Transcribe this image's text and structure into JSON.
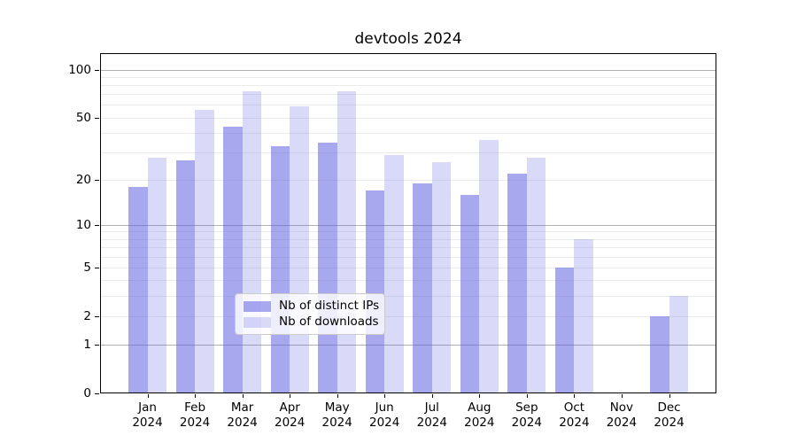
{
  "chart_data": {
    "type": "bar",
    "title": "devtools 2024",
    "y_scale": "log10(value+1)",
    "ylim": [
      0,
      126
    ],
    "grid": "on",
    "legend_position": "lower center, inside plot",
    "categories": [
      "Jan",
      "Feb",
      "Mar",
      "Apr",
      "May",
      "Jun",
      "Jul",
      "Aug",
      "Sep",
      "Oct",
      "Nov",
      "Dec"
    ],
    "category_year_line": "2024",
    "series": [
      {
        "name": "Nb of distinct IPs",
        "css_color": "rgba(97,97,226,0.55)",
        "color_on_white": "#a8a8ef",
        "values": [
          18,
          27,
          44,
          33,
          35,
          17,
          19,
          16,
          22,
          5,
          0,
          2
        ]
      },
      {
        "name": "Nb of downloads",
        "css_color": "rgba(97,97,226,0.245)",
        "color_on_white": "#d8d8f8",
        "values": [
          28,
          56,
          74,
          59,
          74,
          29,
          26,
          36,
          28,
          8,
          0,
          3
        ]
      }
    ],
    "y_ticks": [
      0,
      1,
      2,
      5,
      10,
      20,
      50,
      100
    ],
    "y_major_gridlines": [
      1,
      10,
      100
    ],
    "y_minor_gridlines": [
      2,
      3,
      4,
      5,
      6,
      7,
      8,
      9,
      20,
      30,
      40,
      50,
      60,
      70,
      80,
      90
    ]
  },
  "colors": {
    "background": "#ffffff",
    "spine": "#000000",
    "text": "#000000",
    "grid_major": "#b0b0b0",
    "grid_minor": "#ebebeb",
    "legend_border": "#cccccc",
    "legend_background": "rgba(255,255,255,0.8)"
  }
}
